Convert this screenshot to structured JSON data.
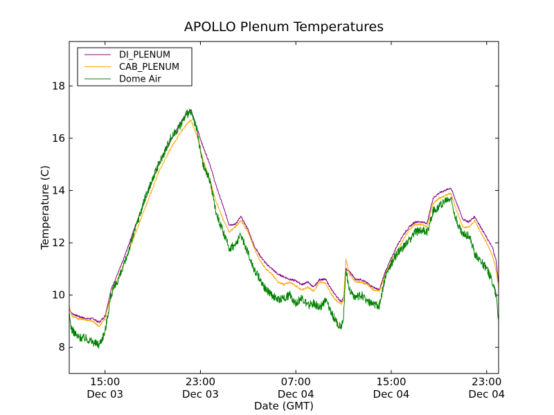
{
  "chart_data": {
    "type": "line",
    "title": "APOLLO Plenum Temperatures",
    "xlabel": "Date (GMT)",
    "ylabel": "Temperature (C)",
    "x_unit": "hours since Dec 03 00:00 GMT",
    "xlim": [
      12.0,
      48.0
    ],
    "ylim": [
      7.0,
      19.7
    ],
    "grid": false,
    "legend_position": "top-left",
    "x_ticks": [
      {
        "value": 15,
        "line1": "15:00",
        "line2": "Dec 03"
      },
      {
        "value": 23,
        "line1": "23:00",
        "line2": "Dec 03"
      },
      {
        "value": 31,
        "line1": "07:00",
        "line2": "Dec 04"
      },
      {
        "value": 39,
        "line1": "15:00",
        "line2": "Dec 04"
      },
      {
        "value": 47,
        "line1": "23:00",
        "line2": "Dec 04"
      }
    ],
    "y_ticks": [
      {
        "value": 8,
        "label": "8"
      },
      {
        "value": 10,
        "label": "10"
      },
      {
        "value": 12,
        "label": "12"
      },
      {
        "value": 14,
        "label": "14"
      },
      {
        "value": 16,
        "label": "16"
      },
      {
        "value": 18,
        "label": "18"
      }
    ],
    "series": [
      {
        "name": "DI_PLENUM",
        "color": "#800080",
        "x": [
          12.0,
          12.2,
          12.7,
          13.4,
          14.0,
          14.5,
          15.0,
          15.5,
          16.5,
          17.5,
          18.5,
          19.5,
          20.5,
          21.3,
          21.8,
          22.2,
          22.7,
          23.2,
          23.8,
          24.3,
          24.9,
          25.4,
          25.9,
          26.4,
          27.0,
          27.5,
          28.0,
          28.5,
          29.0,
          29.5,
          30.0,
          30.5,
          31.0,
          31.5,
          32.0,
          32.5,
          33.0,
          33.5,
          34.0,
          34.5,
          34.8,
          35.0,
          35.2,
          35.5,
          36.0,
          36.5,
          37.0,
          37.5,
          38.0,
          38.5,
          39.0,
          39.5,
          40.0,
          40.5,
          41.0,
          41.5,
          42.0,
          42.5,
          43.0,
          43.5,
          44.0,
          44.5,
          45.0,
          45.5,
          46.0,
          46.5,
          47.0,
          47.5,
          47.8,
          48.0
        ],
        "y": [
          9.5,
          9.3,
          9.2,
          9.1,
          9.1,
          8.95,
          9.2,
          10.2,
          11.3,
          12.6,
          13.8,
          15.0,
          15.9,
          16.6,
          16.9,
          17.1,
          16.4,
          15.7,
          15.0,
          14.2,
          13.4,
          12.7,
          12.7,
          13.0,
          12.5,
          11.9,
          11.5,
          11.2,
          11.0,
          10.8,
          10.7,
          10.6,
          10.55,
          10.4,
          10.5,
          10.3,
          10.6,
          10.6,
          10.2,
          9.9,
          9.75,
          9.9,
          11.0,
          10.9,
          10.6,
          10.6,
          10.45,
          10.3,
          10.2,
          10.9,
          11.4,
          11.9,
          12.3,
          12.6,
          12.8,
          12.8,
          12.75,
          13.7,
          13.9,
          14.0,
          14.1,
          13.5,
          12.9,
          12.8,
          13.0,
          12.6,
          12.2,
          11.8,
          11.3,
          10.4
        ]
      },
      {
        "name": "CAB_PLENUM",
        "color": "#FFA500",
        "x": [
          12.0,
          12.2,
          12.7,
          13.4,
          14.0,
          14.5,
          15.0,
          15.5,
          16.5,
          17.5,
          18.5,
          19.5,
          20.5,
          21.3,
          21.8,
          22.2,
          22.7,
          23.2,
          23.8,
          24.3,
          24.9,
          25.4,
          25.9,
          26.4,
          27.0,
          27.5,
          28.0,
          28.5,
          29.0,
          29.5,
          30.0,
          30.5,
          31.0,
          31.5,
          32.0,
          32.5,
          33.0,
          33.5,
          34.0,
          34.5,
          34.8,
          35.0,
          35.2,
          35.5,
          36.0,
          36.5,
          37.0,
          37.5,
          38.0,
          38.5,
          39.0,
          39.5,
          40.0,
          40.5,
          41.0,
          41.5,
          42.0,
          42.5,
          43.0,
          43.5,
          44.0,
          44.5,
          45.0,
          45.5,
          46.0,
          46.5,
          47.0,
          47.5,
          47.8,
          48.0
        ],
        "y": [
          9.6,
          9.2,
          9.1,
          9.05,
          9.0,
          8.8,
          9.1,
          10.0,
          11.1,
          12.3,
          13.5,
          14.7,
          15.6,
          16.2,
          16.5,
          16.7,
          16.1,
          15.2,
          14.4,
          13.6,
          12.9,
          12.4,
          12.6,
          12.85,
          12.4,
          11.8,
          11.3,
          11.0,
          10.8,
          10.5,
          10.4,
          10.5,
          10.35,
          10.2,
          10.3,
          10.15,
          10.5,
          10.45,
          10.0,
          9.75,
          9.65,
          9.8,
          11.35,
          10.8,
          10.5,
          10.5,
          10.4,
          10.2,
          10.15,
          10.8,
          11.3,
          11.7,
          12.1,
          12.5,
          12.7,
          12.7,
          12.6,
          13.5,
          13.7,
          13.8,
          13.9,
          13.2,
          12.6,
          12.6,
          12.85,
          12.4,
          12.0,
          11.5,
          10.9,
          10.3
        ]
      },
      {
        "name": "Dome Air",
        "color": "#008000",
        "x": [
          12.0,
          12.2,
          12.7,
          13.4,
          14.0,
          14.5,
          15.0,
          15.5,
          16.5,
          17.5,
          18.5,
          19.5,
          20.5,
          21.3,
          21.8,
          22.2,
          22.7,
          23.2,
          23.8,
          24.3,
          24.9,
          25.4,
          25.9,
          26.4,
          27.0,
          27.5,
          28.0,
          28.5,
          29.0,
          29.5,
          30.0,
          30.5,
          31.0,
          31.5,
          32.0,
          32.5,
          33.0,
          33.5,
          34.0,
          34.5,
          34.8,
          35.0,
          35.2,
          35.5,
          36.0,
          36.5,
          37.0,
          37.5,
          38.0,
          38.5,
          39.0,
          39.5,
          40.0,
          40.5,
          41.0,
          41.5,
          42.0,
          42.5,
          43.0,
          43.5,
          44.0,
          44.5,
          45.0,
          45.5,
          46.0,
          46.5,
          47.0,
          47.5,
          47.8,
          48.0
        ],
        "y": [
          9.2,
          8.7,
          8.4,
          8.35,
          8.2,
          8.1,
          8.6,
          10.0,
          11.0,
          12.5,
          13.9,
          15.0,
          16.0,
          16.5,
          16.9,
          17.0,
          16.3,
          15.0,
          14.4,
          13.2,
          12.4,
          11.8,
          11.9,
          12.3,
          11.6,
          11.0,
          10.6,
          10.2,
          10.0,
          9.8,
          9.9,
          10.0,
          9.7,
          9.9,
          9.6,
          9.7,
          9.5,
          9.8,
          9.3,
          8.9,
          8.8,
          9.2,
          11.0,
          10.2,
          9.9,
          10.0,
          9.8,
          9.6,
          9.6,
          10.7,
          11.2,
          11.6,
          11.8,
          12.1,
          12.4,
          12.5,
          12.4,
          13.2,
          13.4,
          13.6,
          13.7,
          12.8,
          12.3,
          12.3,
          11.6,
          11.3,
          11.0,
          10.5,
          10.0,
          9.0
        ]
      }
    ]
  }
}
